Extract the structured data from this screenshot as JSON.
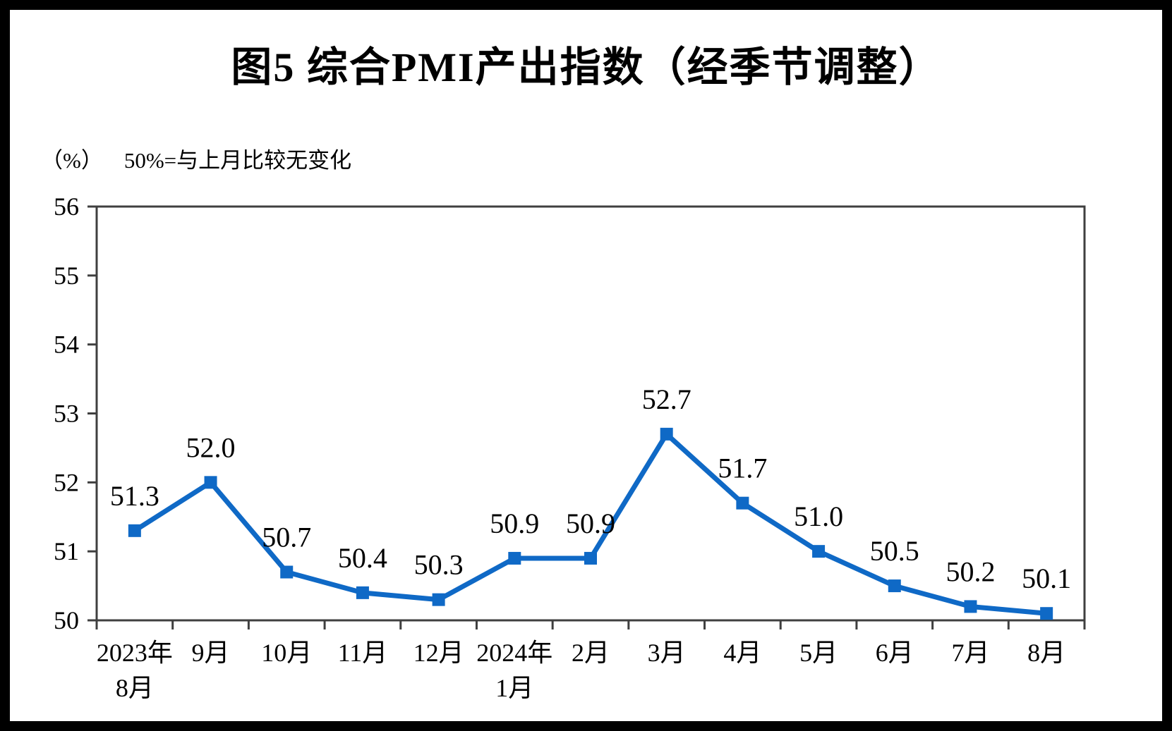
{
  "title": "图5 综合PMI产出指数（经季节调整）",
  "chart_data": {
    "type": "line",
    "title": "图5 综合PMI产出指数（经季节调整）",
    "unit_label": "（%）",
    "note": "50%=与上月比较无变化",
    "categories": [
      [
        "2023年",
        "8月"
      ],
      [
        "9月"
      ],
      [
        "10月"
      ],
      [
        "11月"
      ],
      [
        "12月"
      ],
      [
        "2024年",
        "1月"
      ],
      [
        "2月"
      ],
      [
        "3月"
      ],
      [
        "4月"
      ],
      [
        "5月"
      ],
      [
        "6月"
      ],
      [
        "7月"
      ],
      [
        "8月"
      ]
    ],
    "values": [
      51.3,
      52.0,
      50.7,
      50.4,
      50.3,
      50.9,
      50.9,
      52.7,
      51.7,
      51.0,
      50.5,
      50.2,
      50.1
    ],
    "data_labels": [
      "51.3",
      "52.0",
      "50.7",
      "50.4",
      "50.3",
      "50.9",
      "50.9",
      "52.7",
      "51.7",
      "51.0",
      "50.5",
      "50.2",
      "50.1"
    ],
    "xlabel": "",
    "ylabel": "",
    "ylim": [
      50,
      56
    ],
    "yticks": [
      50,
      51,
      52,
      53,
      54,
      55,
      56
    ],
    "grid": false,
    "legend_position": "none",
    "line_color": "#0F69C6",
    "marker": "square",
    "axis_color": "#3F3F3F",
    "text_color": "#000000",
    "background_color": "#ffffff",
    "frame_color": "#000000"
  }
}
